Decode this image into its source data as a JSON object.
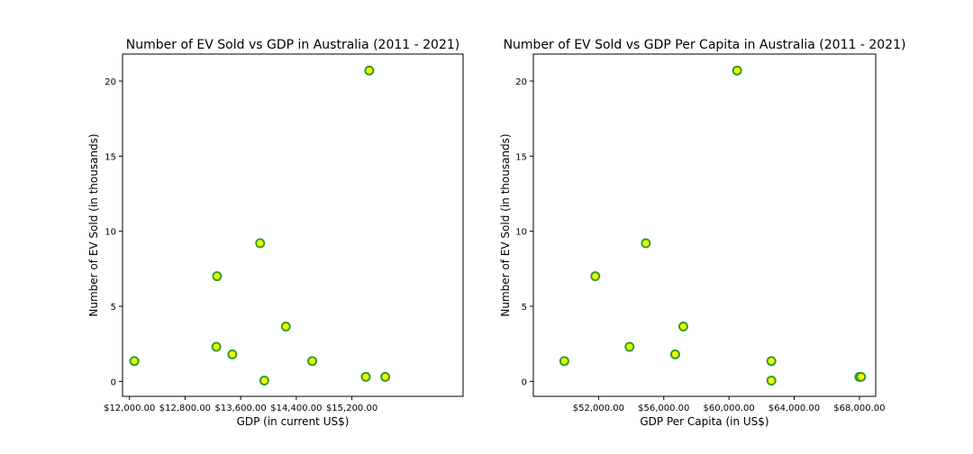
{
  "chart_data": [
    {
      "type": "scatter",
      "title": "Number of EV Sold vs GDP in Australia (2011 - 2021)",
      "xlabel": "GDP (in current US$)",
      "ylabel": "Number of EV Sold (in thousands)",
      "xlim": [
        11900,
        16800
      ],
      "ylim": [
        -1,
        21.8
      ],
      "xticks": [
        12000,
        12800,
        13600,
        14400,
        15200
      ],
      "xtick_labels": [
        "$12,000.00",
        "$12,800.00",
        "$13,600.00",
        "$14,400.00",
        "$15,200.00"
      ],
      "yticks": [
        0,
        5,
        10,
        15,
        20
      ],
      "ytick_labels": [
        "0",
        "5",
        "10",
        "15",
        "20"
      ],
      "grid": false,
      "marker_fill": "#ffff00",
      "marker_edge": "#2ca02c",
      "points": [
        {
          "x": 12070,
          "y": 1.35
        },
        {
          "x": 13250,
          "y": 2.3
        },
        {
          "x": 13260,
          "y": 7.0
        },
        {
          "x": 13480,
          "y": 1.8
        },
        {
          "x": 13880,
          "y": 9.2
        },
        {
          "x": 13940,
          "y": 0.05
        },
        {
          "x": 14250,
          "y": 3.65
        },
        {
          "x": 14630,
          "y": 1.35
        },
        {
          "x": 15400,
          "y": 0.3
        },
        {
          "x": 15450,
          "y": 20.7
        },
        {
          "x": 15680,
          "y": 0.3
        }
      ]
    },
    {
      "type": "scatter",
      "title": "Number of EV Sold vs GDP Per Capita in Australia (2011 - 2021)",
      "xlabel": "GDP Per Capita (in US$)",
      "ylabel": "Number of EV Sold (in thousands)",
      "xlim": [
        48000,
        69000
      ],
      "ylim": [
        -1,
        21.8
      ],
      "xticks": [
        52000,
        56000,
        60000,
        64000,
        68000
      ],
      "xtick_labels": [
        "$52,000.00",
        "$56,000.00",
        "$60,000.00",
        "$64,000.00",
        "$68,000.00"
      ],
      "yticks": [
        0,
        5,
        10,
        15,
        20
      ],
      "ytick_labels": [
        "0",
        "5",
        "10",
        "15",
        "20"
      ],
      "grid": false,
      "marker_fill": "#ffff00",
      "marker_edge": "#2ca02c",
      "points": [
        {
          "x": 49900,
          "y": 1.35
        },
        {
          "x": 51800,
          "y": 7.0
        },
        {
          "x": 53900,
          "y": 2.3
        },
        {
          "x": 54900,
          "y": 9.2
        },
        {
          "x": 56700,
          "y": 1.8
        },
        {
          "x": 57200,
          "y": 3.65
        },
        {
          "x": 60500,
          "y": 20.7
        },
        {
          "x": 62600,
          "y": 1.35
        },
        {
          "x": 62600,
          "y": 0.05
        },
        {
          "x": 68000,
          "y": 0.3
        },
        {
          "x": 68100,
          "y": 0.3
        }
      ]
    }
  ]
}
